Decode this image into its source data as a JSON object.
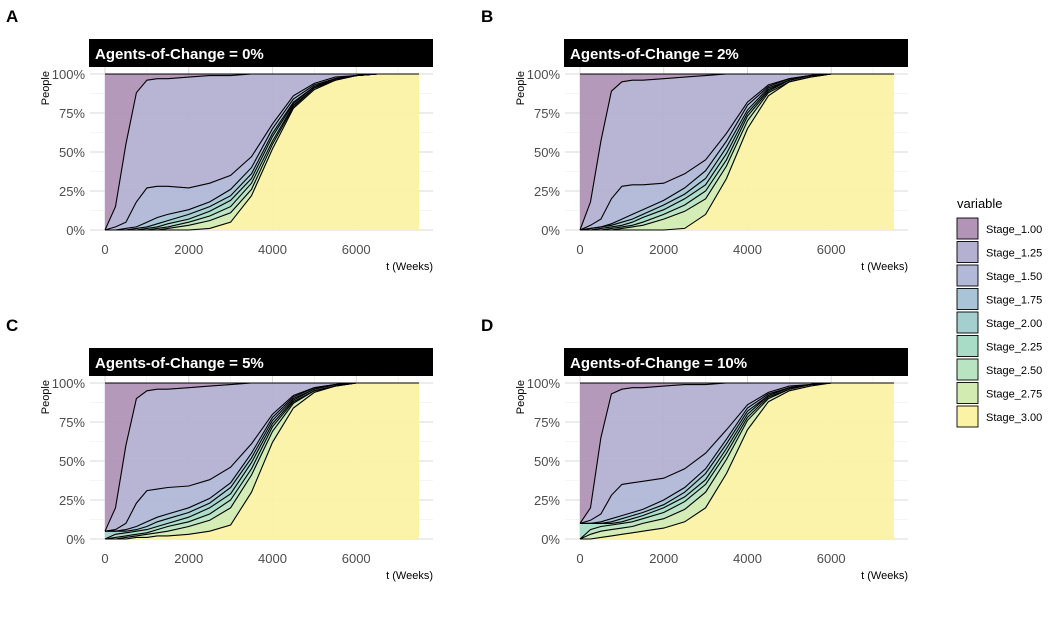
{
  "chart_data": {
    "type": "area",
    "stacked": true,
    "normalized": true,
    "panel_letters": [
      "A",
      "B",
      "C",
      "D"
    ],
    "xlabel": "t (Weeks)",
    "ylabel": "People",
    "xlim": [
      0,
      7500
    ],
    "ylim": [
      0,
      1
    ],
    "x_ticks": [
      0,
      2000,
      4000,
      6000
    ],
    "y_ticks": [
      0,
      0.25,
      0.5,
      0.75,
      1.0
    ],
    "y_tick_labels": [
      "0%",
      "25%",
      "50%",
      "75%",
      "100%"
    ],
    "grid": true,
    "legend": {
      "title": "variable",
      "position": "right",
      "entries": [
        "Stage_1.00",
        "Stage_1.25",
        "Stage_1.50",
        "Stage_1.75",
        "Stage_2.00",
        "Stage_2.25",
        "Stage_2.50",
        "Stage_2.75",
        "Stage_3.00"
      ],
      "colors": [
        "#b194b6",
        "#b4b0d2",
        "#b1b8d8",
        "#a8c4d6",
        "#a3cfcf",
        "#a8dcc6",
        "#b9e4c2",
        "#d2ebb1",
        "#fcf2a6"
      ]
    },
    "x": [
      0,
      250,
      500,
      750,
      1000,
      1250,
      1500,
      2000,
      2500,
      3000,
      3500,
      4000,
      4500,
      5000,
      5500,
      6000,
      6500,
      7000,
      7500
    ],
    "panels": [
      {
        "title": "Agents-of-Change = 0%",
        "boundaries": [
          [
            0.0,
            0.15,
            0.55,
            0.88,
            0.96,
            0.97,
            0.97,
            0.98,
            0.99,
            0.99,
            1.0,
            1.0,
            1.0,
            1.0,
            1.0,
            1.0,
            1.0,
            1.0,
            1.0
          ],
          [
            0.0,
            0.02,
            0.05,
            0.18,
            0.27,
            0.28,
            0.28,
            0.27,
            0.3,
            0.35,
            0.47,
            0.68,
            0.86,
            0.94,
            0.98,
            0.99,
            1.0,
            1.0,
            1.0
          ],
          [
            0.0,
            0.0,
            0.01,
            0.02,
            0.05,
            0.08,
            0.1,
            0.13,
            0.18,
            0.26,
            0.4,
            0.65,
            0.84,
            0.93,
            0.97,
            0.99,
            1.0,
            1.0,
            1.0
          ],
          [
            0.0,
            0.0,
            0.0,
            0.01,
            0.02,
            0.04,
            0.06,
            0.1,
            0.15,
            0.22,
            0.36,
            0.62,
            0.82,
            0.92,
            0.97,
            0.99,
            1.0,
            1.0,
            1.0
          ],
          [
            0.0,
            0.0,
            0.0,
            0.0,
            0.01,
            0.02,
            0.04,
            0.07,
            0.12,
            0.19,
            0.33,
            0.6,
            0.81,
            0.92,
            0.97,
            0.99,
            1.0,
            1.0,
            1.0
          ],
          [
            0.0,
            0.0,
            0.0,
            0.0,
            0.0,
            0.01,
            0.02,
            0.05,
            0.09,
            0.15,
            0.3,
            0.57,
            0.8,
            0.91,
            0.97,
            0.99,
            1.0,
            1.0,
            1.0
          ],
          [
            0.0,
            0.0,
            0.0,
            0.0,
            0.0,
            0.0,
            0.01,
            0.03,
            0.06,
            0.11,
            0.26,
            0.55,
            0.79,
            0.91,
            0.96,
            0.99,
            1.0,
            1.0,
            1.0
          ],
          [
            0.0,
            0.0,
            0.0,
            0.0,
            0.0,
            0.0,
            0.0,
            0.0,
            0.01,
            0.05,
            0.22,
            0.52,
            0.78,
            0.9,
            0.96,
            0.99,
            1.0,
            1.0,
            1.0
          ]
        ]
      },
      {
        "title": "Agents-of-Change = 2%",
        "boundaries": [
          [
            0.0,
            0.18,
            0.57,
            0.89,
            0.95,
            0.96,
            0.96,
            0.97,
            0.98,
            0.99,
            1.0,
            1.0,
            1.0,
            1.0,
            1.0,
            1.0,
            1.0,
            1.0,
            1.0
          ],
          [
            0.0,
            0.03,
            0.07,
            0.2,
            0.28,
            0.29,
            0.29,
            0.3,
            0.36,
            0.45,
            0.62,
            0.82,
            0.93,
            0.97,
            0.99,
            1.0,
            1.0,
            1.0,
            1.0
          ],
          [
            0.0,
            0.01,
            0.02,
            0.04,
            0.07,
            0.1,
            0.13,
            0.19,
            0.27,
            0.38,
            0.57,
            0.8,
            0.92,
            0.97,
            0.99,
            1.0,
            1.0,
            1.0,
            1.0
          ],
          [
            0.0,
            0.01,
            0.02,
            0.03,
            0.05,
            0.07,
            0.1,
            0.16,
            0.23,
            0.33,
            0.53,
            0.77,
            0.91,
            0.96,
            0.99,
            1.0,
            1.0,
            1.0,
            1.0
          ],
          [
            0.0,
            0.0,
            0.01,
            0.02,
            0.03,
            0.05,
            0.08,
            0.13,
            0.2,
            0.29,
            0.49,
            0.75,
            0.9,
            0.96,
            0.99,
            1.0,
            1.0,
            1.0,
            1.0
          ],
          [
            0.0,
            0.0,
            0.0,
            0.01,
            0.02,
            0.03,
            0.05,
            0.1,
            0.16,
            0.25,
            0.45,
            0.73,
            0.89,
            0.96,
            0.99,
            1.0,
            1.0,
            1.0,
            1.0
          ],
          [
            0.0,
            0.0,
            0.0,
            0.0,
            0.01,
            0.02,
            0.03,
            0.07,
            0.12,
            0.2,
            0.41,
            0.7,
            0.88,
            0.95,
            0.98,
            1.0,
            1.0,
            1.0,
            1.0
          ],
          [
            0.0,
            0.0,
            0.0,
            0.0,
            0.0,
            0.0,
            0.0,
            0.0,
            0.01,
            0.1,
            0.33,
            0.65,
            0.86,
            0.95,
            0.98,
            1.0,
            1.0,
            1.0,
            1.0
          ]
        ]
      },
      {
        "title": "Agents-of-Change = 5%",
        "boundaries": [
          [
            0.05,
            0.2,
            0.6,
            0.9,
            0.95,
            0.96,
            0.96,
            0.97,
            0.98,
            0.99,
            1.0,
            1.0,
            1.0,
            1.0,
            1.0,
            1.0,
            1.0,
            1.0,
            1.0
          ],
          [
            0.05,
            0.06,
            0.1,
            0.23,
            0.31,
            0.32,
            0.33,
            0.34,
            0.38,
            0.46,
            0.61,
            0.8,
            0.92,
            0.97,
            0.99,
            1.0,
            1.0,
            1.0,
            1.0
          ],
          [
            0.05,
            0.05,
            0.06,
            0.08,
            0.11,
            0.14,
            0.16,
            0.2,
            0.26,
            0.36,
            0.55,
            0.78,
            0.91,
            0.97,
            0.99,
            1.0,
            1.0,
            1.0,
            1.0
          ],
          [
            0.05,
            0.05,
            0.05,
            0.06,
            0.08,
            0.11,
            0.13,
            0.17,
            0.23,
            0.33,
            0.52,
            0.76,
            0.9,
            0.96,
            0.99,
            1.0,
            1.0,
            1.0,
            1.0
          ],
          [
            0.0,
            0.03,
            0.04,
            0.05,
            0.06,
            0.08,
            0.1,
            0.14,
            0.2,
            0.29,
            0.49,
            0.74,
            0.89,
            0.96,
            0.99,
            1.0,
            1.0,
            1.0,
            1.0
          ],
          [
            0.0,
            0.01,
            0.02,
            0.03,
            0.04,
            0.06,
            0.08,
            0.11,
            0.16,
            0.25,
            0.45,
            0.72,
            0.88,
            0.95,
            0.98,
            1.0,
            1.0,
            1.0,
            1.0
          ],
          [
            0.0,
            0.0,
            0.01,
            0.02,
            0.03,
            0.04,
            0.05,
            0.08,
            0.12,
            0.2,
            0.41,
            0.69,
            0.87,
            0.95,
            0.98,
            1.0,
            1.0,
            1.0,
            1.0
          ],
          [
            0.0,
            0.0,
            0.0,
            0.01,
            0.01,
            0.02,
            0.02,
            0.03,
            0.05,
            0.09,
            0.3,
            0.62,
            0.84,
            0.94,
            0.98,
            1.0,
            1.0,
            1.0,
            1.0
          ]
        ]
      },
      {
        "title": "Agents-of-Change = 10%",
        "boundaries": [
          [
            0.1,
            0.2,
            0.65,
            0.93,
            0.96,
            0.97,
            0.97,
            0.98,
            0.99,
            0.99,
            1.0,
            1.0,
            1.0,
            1.0,
            1.0,
            1.0,
            1.0,
            1.0,
            1.0
          ],
          [
            0.1,
            0.12,
            0.16,
            0.28,
            0.35,
            0.36,
            0.37,
            0.39,
            0.45,
            0.55,
            0.7,
            0.86,
            0.94,
            0.98,
            0.99,
            1.0,
            1.0,
            1.0,
            1.0
          ],
          [
            0.1,
            0.1,
            0.11,
            0.13,
            0.15,
            0.17,
            0.19,
            0.25,
            0.33,
            0.45,
            0.64,
            0.84,
            0.93,
            0.97,
            0.99,
            1.0,
            1.0,
            1.0,
            1.0
          ],
          [
            0.1,
            0.1,
            0.1,
            0.11,
            0.13,
            0.15,
            0.17,
            0.22,
            0.3,
            0.42,
            0.61,
            0.82,
            0.92,
            0.97,
            0.99,
            1.0,
            1.0,
            1.0,
            1.0
          ],
          [
            0.1,
            0.1,
            0.1,
            0.1,
            0.11,
            0.13,
            0.15,
            0.2,
            0.27,
            0.38,
            0.58,
            0.8,
            0.92,
            0.97,
            0.99,
            1.0,
            1.0,
            1.0,
            1.0
          ],
          [
            0.0,
            0.06,
            0.08,
            0.09,
            0.1,
            0.11,
            0.13,
            0.17,
            0.24,
            0.35,
            0.55,
            0.78,
            0.91,
            0.96,
            0.99,
            1.0,
            1.0,
            1.0,
            1.0
          ],
          [
            0.0,
            0.03,
            0.05,
            0.06,
            0.07,
            0.08,
            0.1,
            0.13,
            0.19,
            0.3,
            0.51,
            0.76,
            0.9,
            0.96,
            0.99,
            1.0,
            1.0,
            1.0,
            1.0
          ],
          [
            0.0,
            0.0,
            0.01,
            0.02,
            0.03,
            0.04,
            0.05,
            0.07,
            0.11,
            0.2,
            0.42,
            0.7,
            0.88,
            0.95,
            0.98,
            1.0,
            1.0,
            1.0,
            1.0
          ]
        ]
      }
    ]
  }
}
